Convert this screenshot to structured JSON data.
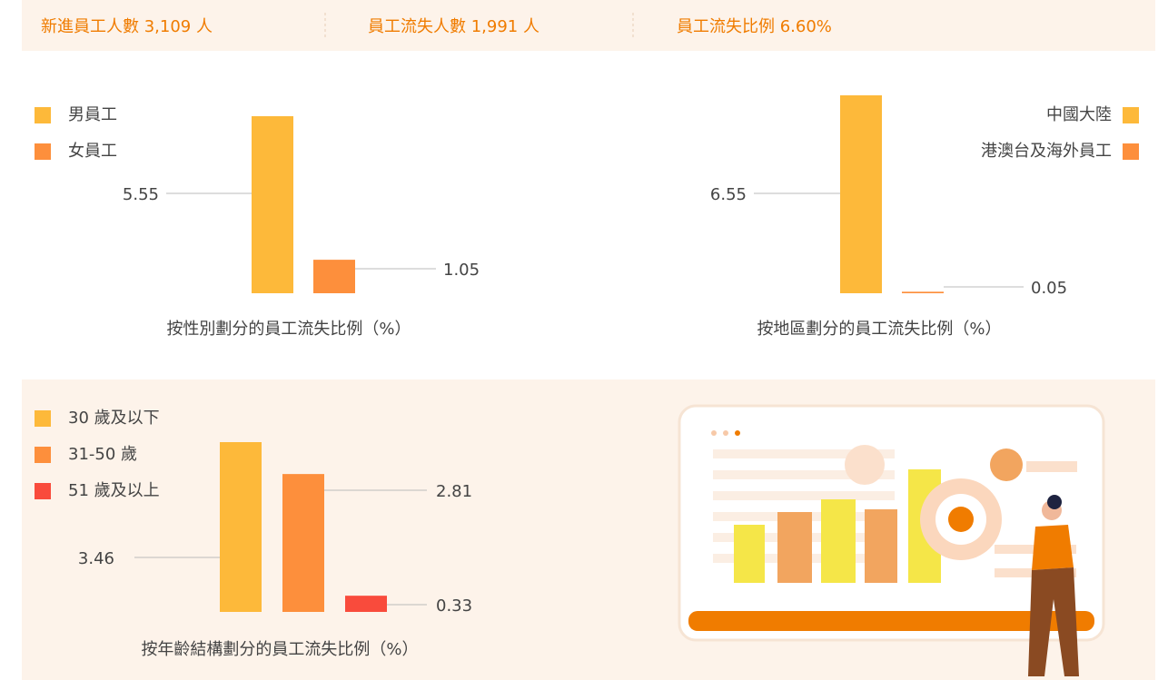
{
  "header": {
    "items": [
      "新進員工人數 3,109 人",
      "員工流失人數 1,991 人",
      "員工流失比例 6.60%"
    ]
  },
  "chart_data": [
    {
      "type": "bar",
      "title": "按性別劃分的員工流失比例（%）",
      "categories": [
        "男員工",
        "女員工"
      ],
      "values": [
        5.55,
        1.05
      ],
      "colors": [
        "#fdb93a",
        "#fd8f3c"
      ]
    },
    {
      "type": "bar",
      "title": "按地區劃分的員工流失比例（%）",
      "categories": [
        "中國大陸",
        "港澳台及海外員工"
      ],
      "values": [
        6.55,
        0.05
      ],
      "colors": [
        "#fdb93a",
        "#fd8f3c"
      ]
    },
    {
      "type": "bar",
      "title": "按年齡結構劃分的員工流失比例（%）",
      "categories": [
        "30 歲及以下",
        "31-50 歲",
        "51 歲及以上"
      ],
      "values": [
        3.46,
        2.81,
        0.33
      ],
      "colors": [
        "#fdb93a",
        "#fd8f3c",
        "#f94b3c"
      ]
    }
  ]
}
